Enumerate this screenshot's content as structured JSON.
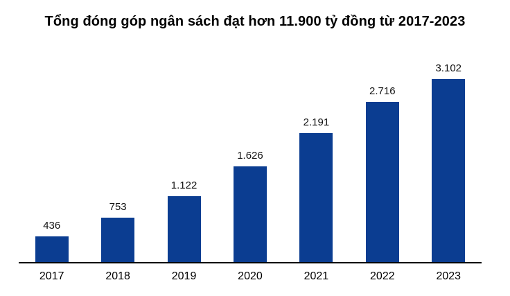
{
  "title": "Tổng đóng góp ngân sách đạt hơn 11.900 tỷ đồng từ 2017-2023",
  "chart_data": {
    "type": "bar",
    "categories": [
      "2017",
      "2018",
      "2019",
      "2020",
      "2021",
      "2022",
      "2023"
    ],
    "values": [
      436,
      753,
      1122,
      1626,
      2191,
      2716,
      3102
    ],
    "value_labels": [
      "436",
      "753",
      "1.122",
      "1.626",
      "2.191",
      "2.716",
      "3.102"
    ],
    "title": "Tổng đóng góp ngân sách đạt hơn 11.900 tỷ đồng từ 2017-2023",
    "xlabel": "",
    "ylabel": "",
    "ylim": [
      0,
      3300
    ],
    "grid": false,
    "legend": "none",
    "bar_color": "#0b3d91",
    "axis_color": "#000000",
    "label_color": "#111111"
  }
}
